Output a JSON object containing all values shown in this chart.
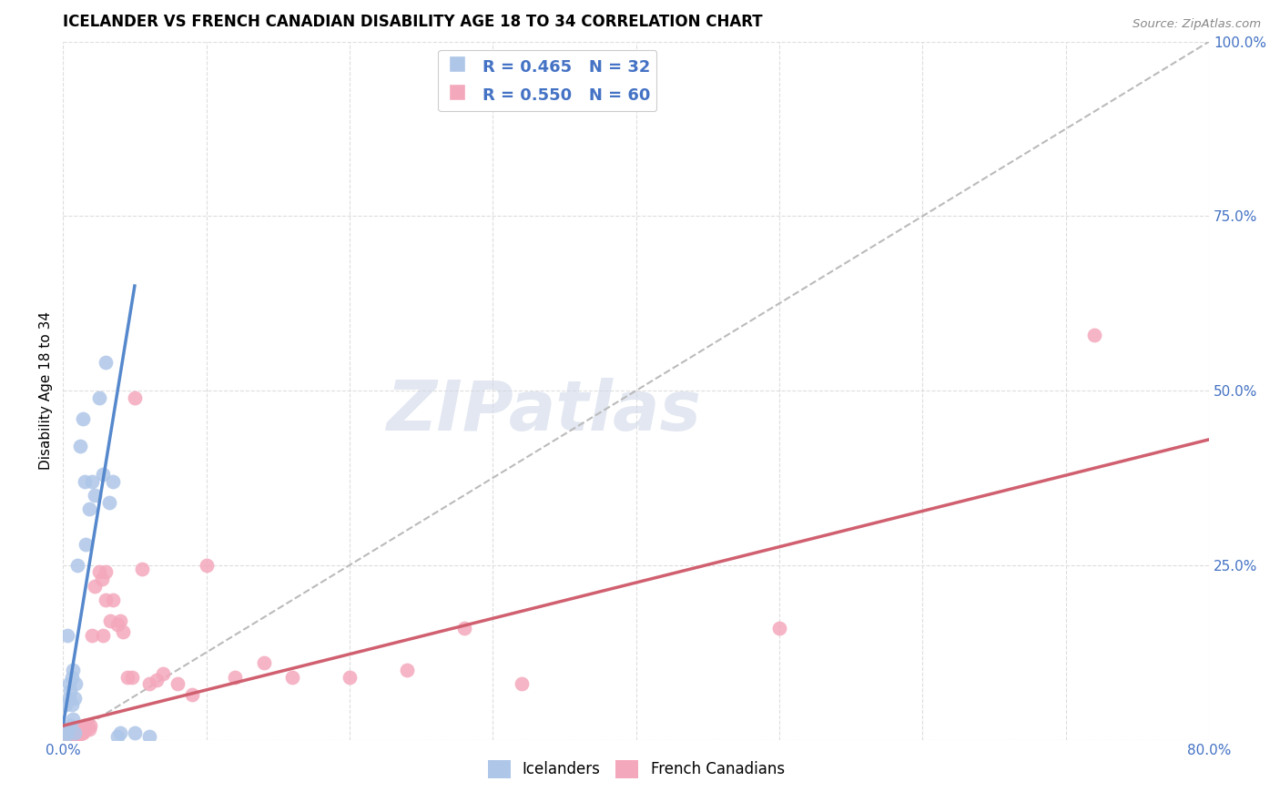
{
  "title": "ICELANDER VS FRENCH CANADIAN DISABILITY AGE 18 TO 34 CORRELATION CHART",
  "source": "Source: ZipAtlas.com",
  "ylabel": "Disability Age 18 to 34",
  "xlim": [
    0,
    0.8
  ],
  "ylim": [
    0,
    1.0
  ],
  "watermark": "ZIPatlas",
  "icelander_color": "#aec6e8",
  "icelander_line_color": "#5588cc",
  "french_color": "#f4a8bc",
  "french_line_color": "#d06070",
  "diagonal_color": "#bbbbbb",
  "icelander_x": [
    0.001,
    0.002,
    0.003,
    0.003,
    0.004,
    0.004,
    0.005,
    0.005,
    0.006,
    0.006,
    0.007,
    0.007,
    0.008,
    0.008,
    0.009,
    0.01,
    0.012,
    0.014,
    0.015,
    0.016,
    0.018,
    0.02,
    0.022,
    0.025,
    0.028,
    0.03,
    0.032,
    0.035,
    0.038,
    0.04,
    0.05,
    0.06
  ],
  "icelander_y": [
    0.005,
    0.05,
    0.01,
    0.15,
    0.08,
    0.06,
    0.07,
    0.02,
    0.09,
    0.05,
    0.1,
    0.03,
    0.06,
    0.01,
    0.08,
    0.25,
    0.42,
    0.46,
    0.37,
    0.28,
    0.33,
    0.37,
    0.35,
    0.49,
    0.38,
    0.54,
    0.34,
    0.37,
    0.005,
    0.01,
    0.01,
    0.005
  ],
  "icelander_line_x0": 0.0,
  "icelander_line_y0": 0.02,
  "icelander_line_x1": 0.05,
  "icelander_line_y1": 0.65,
  "french_x": [
    0.001,
    0.002,
    0.002,
    0.003,
    0.003,
    0.004,
    0.004,
    0.005,
    0.005,
    0.006,
    0.006,
    0.007,
    0.007,
    0.008,
    0.008,
    0.009,
    0.009,
    0.01,
    0.01,
    0.011,
    0.012,
    0.013,
    0.014,
    0.015,
    0.015,
    0.016,
    0.017,
    0.018,
    0.019,
    0.02,
    0.022,
    0.025,
    0.027,
    0.028,
    0.03,
    0.03,
    0.033,
    0.035,
    0.038,
    0.04,
    0.042,
    0.045,
    0.048,
    0.05,
    0.055,
    0.06,
    0.065,
    0.07,
    0.08,
    0.09,
    0.1,
    0.12,
    0.14,
    0.16,
    0.2,
    0.24,
    0.28,
    0.32,
    0.5,
    0.72
  ],
  "french_y": [
    0.005,
    0.005,
    0.01,
    0.005,
    0.01,
    0.005,
    0.01,
    0.01,
    0.015,
    0.01,
    0.005,
    0.01,
    0.005,
    0.01,
    0.015,
    0.01,
    0.005,
    0.01,
    0.005,
    0.01,
    0.015,
    0.01,
    0.01,
    0.015,
    0.02,
    0.015,
    0.02,
    0.015,
    0.02,
    0.15,
    0.22,
    0.24,
    0.23,
    0.15,
    0.24,
    0.2,
    0.17,
    0.2,
    0.165,
    0.17,
    0.155,
    0.09,
    0.09,
    0.49,
    0.245,
    0.08,
    0.085,
    0.095,
    0.08,
    0.065,
    0.25,
    0.09,
    0.11,
    0.09,
    0.09,
    0.1,
    0.16,
    0.08,
    0.16,
    0.58
  ],
  "french_line_x0": 0.0,
  "french_line_y0": 0.02,
  "french_line_x1": 0.8,
  "french_line_y1": 0.43,
  "background_color": "#ffffff",
  "grid_color": "#dddddd"
}
